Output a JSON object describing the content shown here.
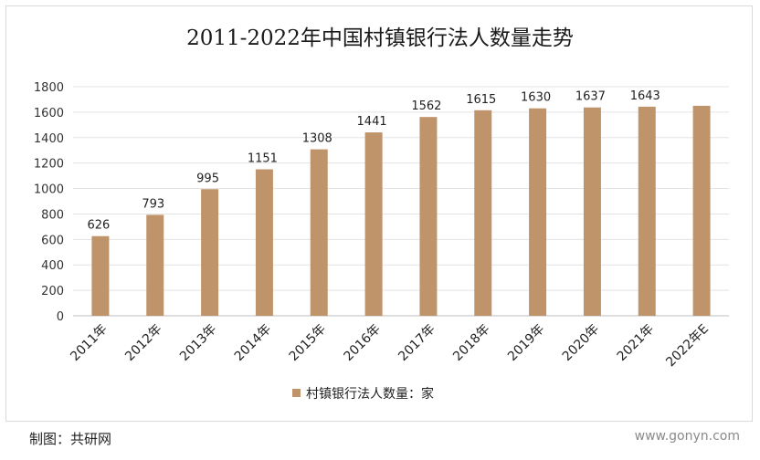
{
  "chart_data": {
    "type": "bar",
    "title": "2011-2022年中国村镇银行法人数量走势",
    "categories": [
      "2011年",
      "2012年",
      "2013年",
      "2014年",
      "2015年",
      "2016年",
      "2017年",
      "2018年",
      "2019年",
      "2020年",
      "2021年",
      "2022年E"
    ],
    "series": [
      {
        "name": "村镇银行法人数量：家",
        "values": [
          626,
          793,
          995,
          1151,
          1308,
          1441,
          1562,
          1615,
          1630,
          1637,
          1643,
          1650
        ],
        "data_labels": [
          "626",
          "793",
          "995",
          "1151",
          "1308",
          "1441",
          "1562",
          "1615",
          "1630",
          "1637",
          "1643",
          ""
        ],
        "color": "#c0946b"
      }
    ],
    "yticks": [
      "0",
      "200",
      "400",
      "600",
      "800",
      "1000",
      "1200",
      "1400",
      "1600",
      "1800"
    ],
    "ylim": [
      0,
      1800
    ],
    "xlabel": "",
    "ylabel": "",
    "grid": true,
    "legend_position": "bottom"
  },
  "footer": {
    "source": "制图：共研网",
    "watermark": "www.gonyn.com"
  }
}
